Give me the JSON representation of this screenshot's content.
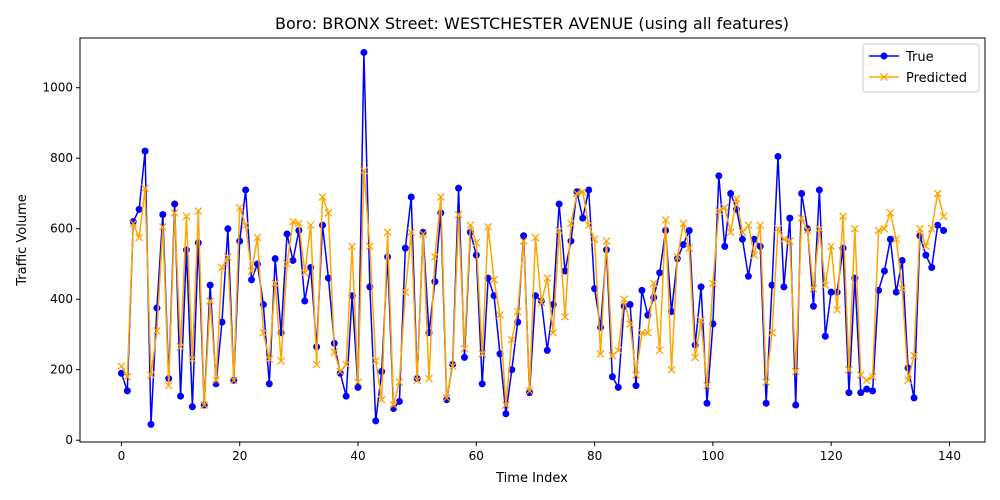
{
  "chart_data": {
    "type": "line",
    "title": "Boro: BRONX Street: WESTCHESTER AVENUE (using all features)",
    "xlabel": "Time Index",
    "ylabel": "Traffic Volume",
    "xlim": [
      -7,
      146
    ],
    "ylim": [
      -5,
      1141
    ],
    "xticks": [
      0,
      20,
      40,
      60,
      80,
      100,
      120,
      140
    ],
    "yticks": [
      0,
      200,
      400,
      600,
      800,
      1000
    ],
    "grid": false,
    "legend_position": "upper right",
    "x": [
      0,
      1,
      2,
      3,
      4,
      5,
      6,
      7,
      8,
      9,
      10,
      11,
      12,
      13,
      14,
      15,
      16,
      17,
      18,
      19,
      20,
      21,
      22,
      23,
      24,
      25,
      26,
      27,
      28,
      29,
      30,
      31,
      32,
      33,
      34,
      35,
      36,
      37,
      38,
      39,
      40,
      41,
      42,
      43,
      44,
      45,
      46,
      47,
      48,
      49,
      50,
      51,
      52,
      53,
      54,
      55,
      56,
      57,
      58,
      59,
      60,
      61,
      62,
      63,
      64,
      65,
      66,
      67,
      68,
      69,
      70,
      71,
      72,
      73,
      74,
      75,
      76,
      77,
      78,
      79,
      80,
      81,
      82,
      83,
      84,
      85,
      86,
      87,
      88,
      89,
      90,
      91,
      92,
      93,
      94,
      95,
      96,
      97,
      98,
      99,
      100,
      101,
      102,
      103,
      104,
      105,
      106,
      107,
      108,
      109,
      110,
      111,
      112,
      113,
      114,
      115,
      116,
      117,
      118,
      119,
      120,
      121,
      122,
      123,
      124,
      125,
      126,
      127,
      128,
      129,
      130,
      131,
      132,
      133,
      134,
      135,
      136,
      137,
      138,
      139
    ],
    "series": [
      {
        "name": "True",
        "color": "#0000ff",
        "marker": "circle",
        "values": [
          190,
          140,
          620,
          655,
          820,
          45,
          375,
          640,
          175,
          670,
          125,
          540,
          95,
          560,
          100,
          440,
          160,
          335,
          600,
          170,
          565,
          710,
          455,
          500,
          385,
          160,
          515,
          305,
          585,
          510,
          595,
          395,
          490,
          265,
          610,
          460,
          275,
          190,
          125,
          410,
          150,
          1100,
          435,
          55,
          195,
          520,
          90,
          110,
          545,
          690,
          175,
          590,
          305,
          450,
          645,
          115,
          215,
          715,
          235,
          590,
          525,
          160,
          460,
          410,
          245,
          75,
          200,
          335,
          580,
          135,
          410,
          395,
          255,
          385,
          670,
          480,
          565,
          705,
          630,
          710,
          430,
          320,
          540,
          180,
          150,
          380,
          385,
          155,
          425,
          355,
          405,
          475,
          595,
          365,
          515,
          555,
          595,
          270,
          435,
          105,
          330,
          750,
          550,
          700,
          655,
          570,
          465,
          570,
          550,
          105,
          440,
          805,
          435,
          630,
          100,
          700,
          600,
          380,
          710,
          295,
          420,
          420,
          545,
          135,
          460,
          135,
          145,
          140,
          425,
          480,
          570,
          420,
          510,
          205,
          120,
          580,
          525,
          490,
          610,
          595
        ]
      },
      {
        "name": "Predicted",
        "color": "#ffa500",
        "marker": "x",
        "values": [
          210,
          180,
          615,
          575,
          715,
          185,
          310,
          605,
          155,
          645,
          265,
          635,
          230,
          650,
          100,
          395,
          170,
          490,
          520,
          170,
          660,
          610,
          480,
          575,
          305,
          230,
          445,
          225,
          500,
          620,
          615,
          475,
          610,
          215,
          690,
          645,
          250,
          195,
          215,
          550,
          165,
          765,
          550,
          225,
          115,
          590,
          100,
          165,
          420,
          590,
          170,
          585,
          175,
          520,
          690,
          120,
          210,
          640,
          260,
          610,
          560,
          245,
          605,
          455,
          355,
          100,
          285,
          365,
          565,
          140,
          575,
          390,
          460,
          305,
          595,
          350,
          615,
          700,
          705,
          610,
          570,
          245,
          565,
          240,
          255,
          400,
          330,
          185,
          305,
          305,
          445,
          255,
          625,
          200,
          520,
          615,
          545,
          235,
          340,
          155,
          445,
          650,
          660,
          590,
          685,
          590,
          610,
          525,
          610,
          165,
          305,
          600,
          570,
          565,
          195,
          630,
          595,
          430,
          600,
          440,
          550,
          370,
          635,
          200,
          600,
          185,
          170,
          180,
          595,
          600,
          645,
          570,
          430,
          170,
          240,
          600,
          550,
          600,
          700,
          635
        ]
      }
    ]
  }
}
